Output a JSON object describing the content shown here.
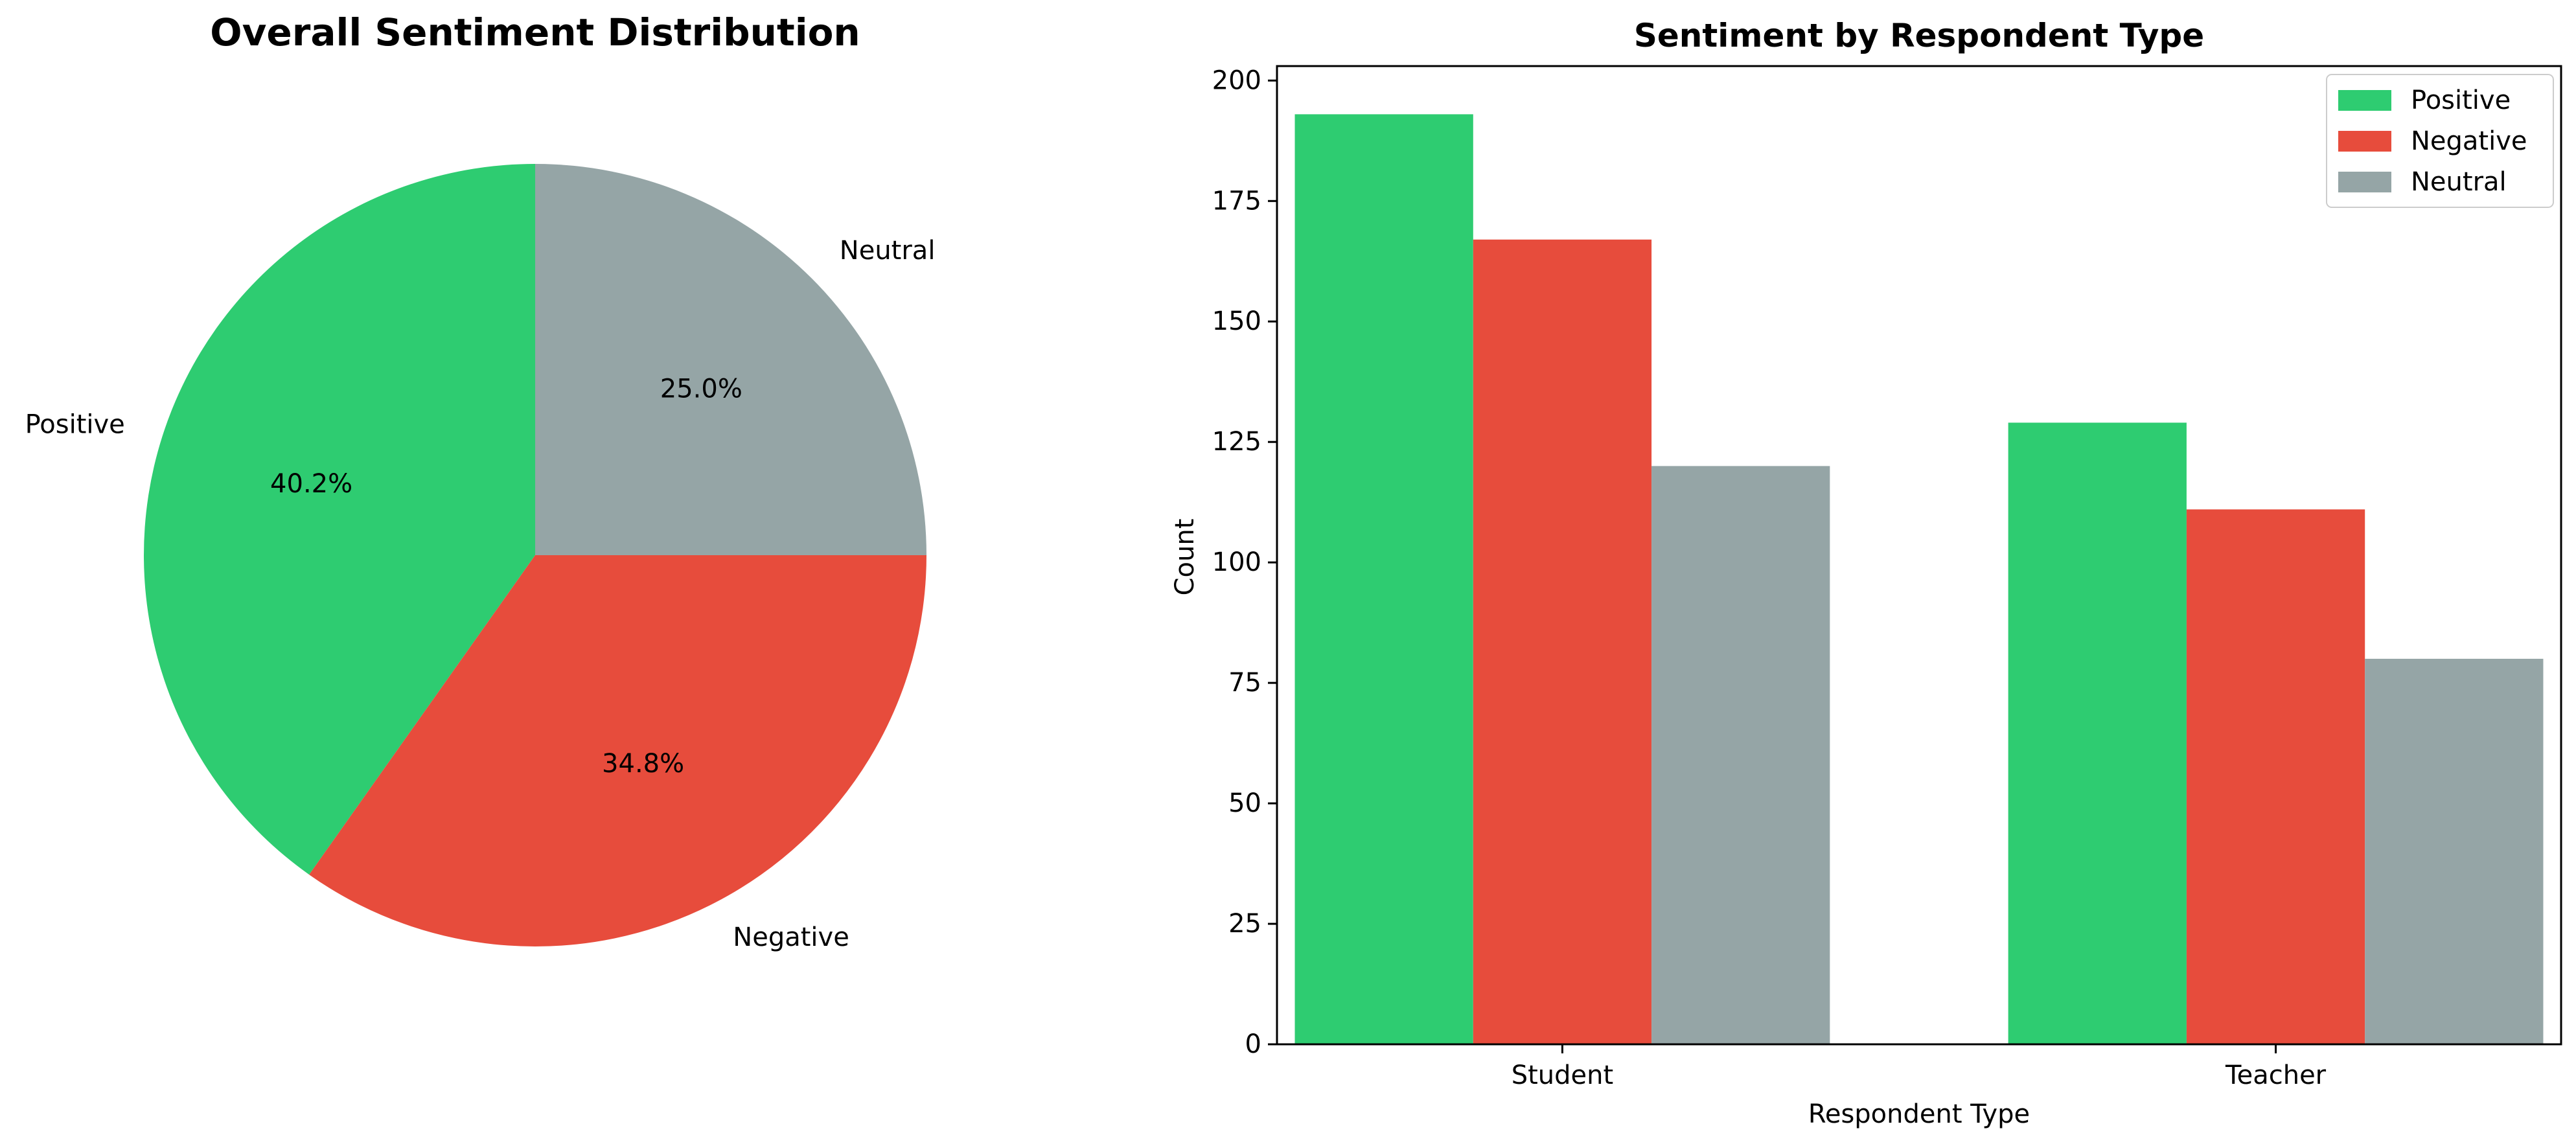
{
  "colors": {
    "positive": "#2ecc71",
    "negative": "#e74c3c",
    "neutral": "#95a5a6"
  },
  "chart_data": [
    {
      "type": "pie",
      "title": "Overall Sentiment Distribution",
      "labels": [
        "Positive",
        "Negative",
        "Neutral"
      ],
      "values": [
        40.2,
        34.8,
        25.0
      ],
      "value_labels": [
        "40.2%",
        "34.8%",
        "25.0%"
      ],
      "colors": [
        "#2ecc71",
        "#e74c3c",
        "#95a5a6"
      ],
      "start_angle": 90,
      "direction": "counterclockwise"
    },
    {
      "type": "bar",
      "title": "Sentiment by Respondent Type",
      "categories": [
        "Student",
        "Teacher"
      ],
      "series": [
        {
          "name": "Positive",
          "values": [
            193,
            129
          ],
          "color": "#2ecc71"
        },
        {
          "name": "Negative",
          "values": [
            167,
            111
          ],
          "color": "#e74c3c"
        },
        {
          "name": "Neutral",
          "values": [
            120,
            80
          ],
          "color": "#95a5a6"
        }
      ],
      "xlabel": "Respondent Type",
      "ylabel": "Count",
      "ylim": [
        0,
        203
      ],
      "yticks": [
        0,
        25,
        50,
        75,
        100,
        125,
        150,
        175,
        200
      ],
      "legend": "top-right",
      "grid": false
    }
  ]
}
